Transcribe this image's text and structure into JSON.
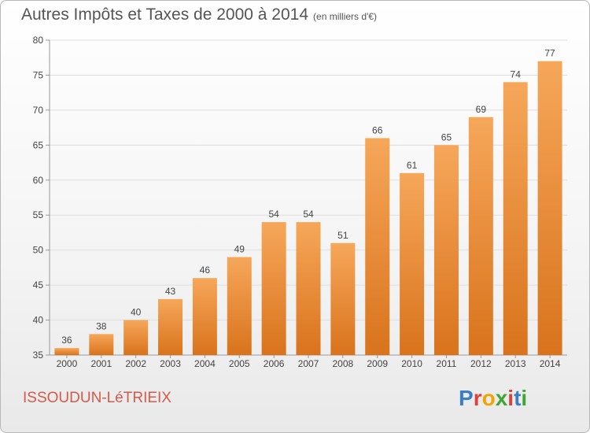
{
  "title": "Autres Impôts et Taxes de 2000 à 2014",
  "subtitle": "(en milliers d'€)",
  "footer": {
    "commune": "ISSOUDUN-LéTRIEIX"
  },
  "logo": {
    "text": "Proxiti",
    "colors": [
      "#3a7fc4",
      "#e0403a",
      "#f2a400",
      "#3fa535",
      "#e0403a",
      "#3a7fc4",
      "#3fa535"
    ]
  },
  "colors": {
    "bar_light": "#f6a75a",
    "bar_dark": "#d9731c",
    "axis": "#999999",
    "grid": "#dddddd",
    "text": "#444444"
  },
  "chart_data": {
    "type": "bar",
    "title": "Autres Impôts et Taxes de 2000 à 2014",
    "categories": [
      "2000",
      "2001",
      "2002",
      "2003",
      "2004",
      "2005",
      "2006",
      "2007",
      "2008",
      "2009",
      "2010",
      "2011",
      "2012",
      "2013",
      "2014"
    ],
    "values": [
      36,
      38,
      40,
      43,
      46,
      49,
      54,
      54,
      51,
      66,
      61,
      65,
      69,
      74,
      77
    ],
    "ylim": [
      35,
      80
    ],
    "yticks": [
      35,
      40,
      45,
      50,
      55,
      60,
      65,
      70,
      75,
      80
    ],
    "grid": true,
    "xlabel": "",
    "ylabel": ""
  }
}
